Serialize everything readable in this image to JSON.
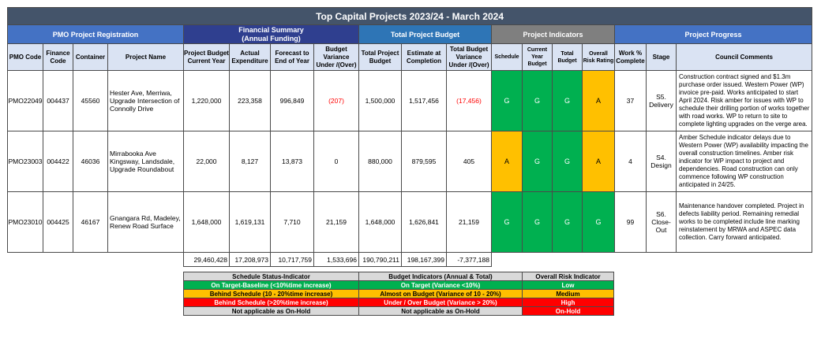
{
  "title": "Top Capital Projects 2023/24 - March 2024",
  "groups": {
    "pmo": "PMO Project Registration",
    "financial": "Financial Summary\n(Annual Funding)",
    "total_budget": "Total Project Budget",
    "indicators": "Project Indicators",
    "progress": "Project Progress"
  },
  "headers": {
    "pmo_code": "PMO Code",
    "finance_code": "Finance Code",
    "container": "Container",
    "project_name": "Project Name",
    "project_budget": "Project Budget Current Year",
    "actual_expenditure": "Actual Expenditure",
    "forecast": "Forecast to End of Year",
    "budget_variance": "Budget Variance Under /(Over)",
    "total_project_budget": "Total Project Budget",
    "estimate_completion": "Estimate at Completion",
    "total_variance": "Total Budget Variance Under /(Over)",
    "schedule": "Schedule",
    "current_year_budget": "Current Year Budget",
    "total_budget": "Total Budget",
    "overall_risk": "Overall Risk Rating",
    "work_complete": "Work % Complete",
    "stage": "Stage",
    "council_comments": "Council Comments"
  },
  "rows": [
    {
      "pmo_code": "PMO22049",
      "finance_code": "004437",
      "container": "45560",
      "project_name": "Hester Ave, Merriwa, Upgrade Intersection of Connolly Drive",
      "project_budget": "1,220,000",
      "actual_expenditure": "223,358",
      "forecast": "996,849",
      "budget_variance": "(207)",
      "total_project_budget": "1,500,000",
      "estimate_completion": "1,517,456",
      "total_variance": "(17,456)",
      "schedule": "G",
      "current_year_budget": "G",
      "total_budget": "G",
      "overall_risk": "A",
      "work_complete": "37",
      "stage": "S5. Delivery",
      "comment": "Construction contract signed and $1.3m purchase order issued. Western Power (WP) invoice pre-paid. Works anticipated to start April 2024.  Risk amber for issues with WP to schedule their drilling portion of works together with road works. WP to return to site to complete lighting upgrades on the verge area."
    },
    {
      "pmo_code": "PMO23003",
      "finance_code": "004422",
      "container": "46036",
      "project_name": "Mirrabooka Ave Kingsway, Landsdale, Upgrade Roundabout",
      "project_budget": "22,000",
      "actual_expenditure": "8,127",
      "forecast": "13,873",
      "budget_variance": "0",
      "total_project_budget": "880,000",
      "estimate_completion": "879,595",
      "total_variance": "405",
      "schedule": "A",
      "current_year_budget": "G",
      "total_budget": "G",
      "overall_risk": "A",
      "work_complete": "4",
      "stage": "S4. Design",
      "comment": "Amber Schedule indicator delays due to Western Power (WP) availability impacting the overall construction timelines. Amber risk indicator for WP impact to project and dependencies. Road construction can only commence following WP construction anticipated in 24/25."
    },
    {
      "pmo_code": "PMO23010",
      "finance_code": "004425",
      "container": "46167",
      "project_name": "Gnangara Rd, Madeley, Renew Road Surface",
      "project_budget": "1,648,000",
      "actual_expenditure": "1,619,131",
      "forecast": "7,710",
      "budget_variance": "21,159",
      "total_project_budget": "1,648,000",
      "estimate_completion": "1,626,841",
      "total_variance": "21,159",
      "schedule": "G",
      "current_year_budget": "G",
      "total_budget": "G",
      "overall_risk": "G",
      "work_complete": "99",
      "stage": "S6. Close-Out",
      "comment": "Maintenance handover completed. Project in defects liability period. Remaining remedial works to be completed include line marking reinstatement by MRWA and ASPEC data collection.  Carry forward anticipated."
    }
  ],
  "totals": {
    "project_budget": "29,460,428",
    "actual_expenditure": "17,208,973",
    "forecast": "10,717,759",
    "budget_variance": "1,533,696",
    "total_project_budget": "190,790,211",
    "estimate_completion": "198,167,399",
    "total_variance": "-7,377,188"
  },
  "legend": {
    "headers": [
      "Schedule Status-Indicator",
      "Budget Indicators (Annual & Total)",
      "Overall Risk Indicator"
    ],
    "rows": [
      [
        "On Target-Baseline (<10%time increase)",
        "On Target (Variance <10%)",
        "Low"
      ],
      [
        "Behind Schedule (10 - 20%time increase)",
        "Almost on Budget (Variance of 10 - 20%)",
        "Medium"
      ],
      [
        "Behind Schedule (>20%time increase)",
        "Under / Over Budget (Variance > 20%)",
        "High"
      ],
      [
        "Not applicable as On-Hold",
        "Not applicable as On-Hold",
        "On-Hold"
      ]
    ]
  },
  "colors": {
    "green": "#00b050",
    "amber": "#ffc000",
    "red": "#ff0000",
    "title_bar": "#44546a"
  }
}
